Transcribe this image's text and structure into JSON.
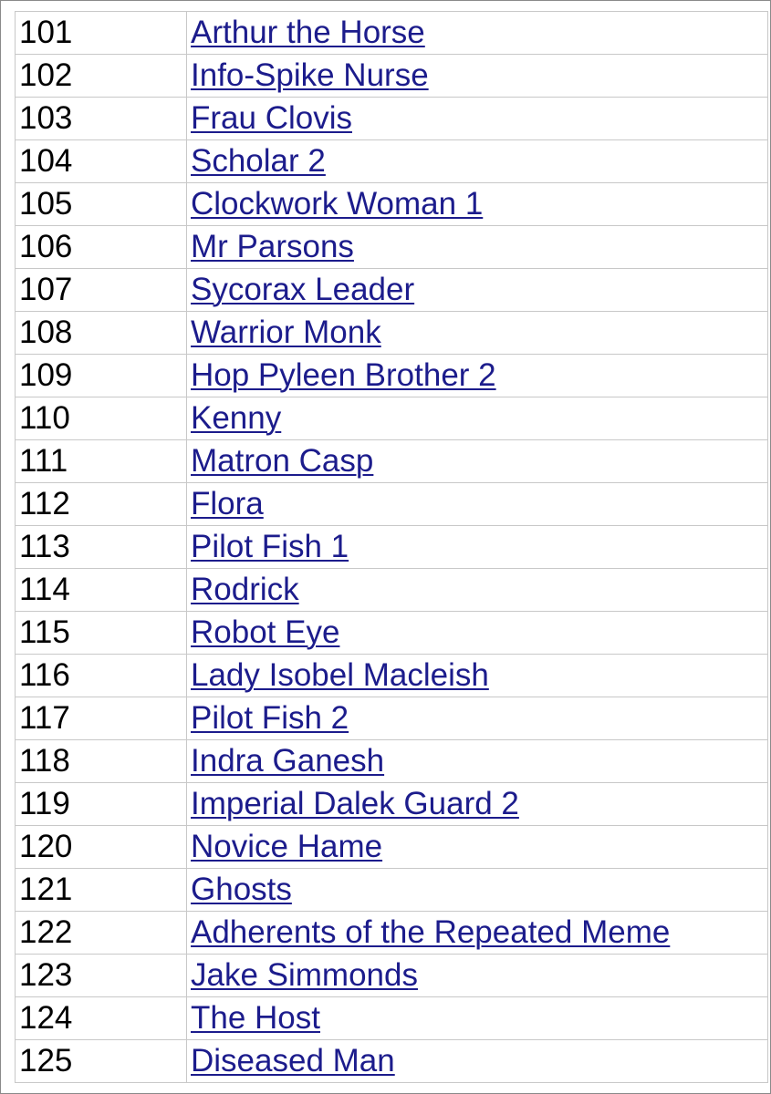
{
  "rows": [
    {
      "id": "101",
      "name": "Arthur the Horse"
    },
    {
      "id": "102",
      "name": "Info-Spike Nurse"
    },
    {
      "id": "103",
      "name": "Frau Clovis"
    },
    {
      "id": "104",
      "name": "Scholar 2"
    },
    {
      "id": "105",
      "name": "Clockwork Woman 1"
    },
    {
      "id": "106",
      "name": "Mr Parsons"
    },
    {
      "id": "107",
      "name": "Sycorax Leader"
    },
    {
      "id": "108",
      "name": "Warrior Monk"
    },
    {
      "id": "109",
      "name": "Hop Pyleen Brother 2"
    },
    {
      "id": "110",
      "name": "Kenny"
    },
    {
      "id": "111",
      "name": "Matron Casp"
    },
    {
      "id": "112",
      "name": "Flora"
    },
    {
      "id": "113",
      "name": "Pilot Fish 1"
    },
    {
      "id": "114",
      "name": "Rodrick"
    },
    {
      "id": "115",
      "name": "Robot Eye"
    },
    {
      "id": "116",
      "name": "Lady Isobel Macleish"
    },
    {
      "id": "117",
      "name": "Pilot Fish 2"
    },
    {
      "id": "118",
      "name": "Indra Ganesh"
    },
    {
      "id": "119",
      "name": "Imperial Dalek Guard 2"
    },
    {
      "id": "120",
      "name": "Novice Hame"
    },
    {
      "id": "121",
      "name": "Ghosts"
    },
    {
      "id": "122",
      "name": "Adherents of the Repeated Meme"
    },
    {
      "id": "123",
      "name": "Jake Simmonds"
    },
    {
      "id": "124",
      "name": "The Host"
    },
    {
      "id": "125",
      "name": "Diseased Man"
    }
  ],
  "colors": {
    "link": "#1c1c8c",
    "grid": "#c8c8c8"
  }
}
